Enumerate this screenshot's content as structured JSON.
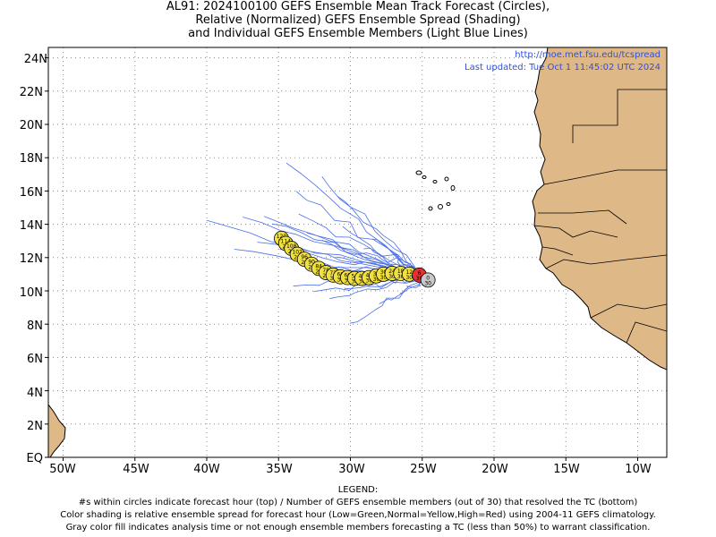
{
  "title_lines": [
    "AL91: 2024100100 GEFS Ensemble Mean Track Forecast (Circles),",
    "Relative (Normalized) GEFS Ensemble Spread (Shading)",
    "and Individual GEFS Ensemble Members (Light Blue Lines)"
  ],
  "info": {
    "url": "http://moe.met.fsu.edu/tcspread",
    "updated": "Last updated: Tue Oct 1 11:45:02 UTC 2024"
  },
  "legend": {
    "heading": "LEGEND:",
    "lines": [
      "#s within circles indicate forecast hour (top) / Number of GEFS ensemble members (out of 30) that resolved the TC (bottom)",
      "Color shading is relative ensemble spread for forecast hour (Low=Green,Normal=Yellow,High=Red) using 2004-11 GEFS climatology.",
      "Gray color fill indicates analysis time or not enough ensemble members forecasting a TC (less than 50%) to warrant classification."
    ]
  },
  "axes": {
    "lon_labels": [
      "50W",
      "45W",
      "40W",
      "35W",
      "30W",
      "25W",
      "20W",
      "15W",
      "10W"
    ],
    "lat_labels": [
      "EQ",
      "2N",
      "4N",
      "6N",
      "8N",
      "10N",
      "12N",
      "14N",
      "16N",
      "18N",
      "20N",
      "22N",
      "24N"
    ],
    "lon_range": [
      -51.5,
      -7.5
    ],
    "lat_range": [
      0,
      24.5
    ]
  },
  "colors": {
    "land": "#deb887",
    "member_track": "#4a6ee8",
    "mean_yellow": "#f0e040",
    "mean_red": "#e83030",
    "analysis_gray": "#c8c8c8",
    "info_text": "#3050e0"
  },
  "mean_track": [
    {
      "hour": "0",
      "members": "30",
      "lon": -24.6,
      "lat": 10.65,
      "spread": "analysis"
    },
    {
      "hour": "6",
      "members": "30",
      "lon": -25.2,
      "lat": 10.95,
      "spread": "high"
    },
    {
      "hour": "12",
      "members": "30",
      "lon": -25.9,
      "lat": 11.0,
      "spread": "normal"
    },
    {
      "hour": "18",
      "members": "30",
      "lon": -26.5,
      "lat": 11.05,
      "spread": "normal"
    },
    {
      "hour": "24",
      "members": "30",
      "lon": -27.1,
      "lat": 11.05,
      "spread": "normal"
    },
    {
      "hour": "30",
      "members": "30",
      "lon": -27.7,
      "lat": 11.0,
      "spread": "normal"
    },
    {
      "hour": "36",
      "members": "30",
      "lon": -28.2,
      "lat": 10.9,
      "spread": "normal"
    },
    {
      "hour": "42",
      "members": "30",
      "lon": -28.7,
      "lat": 10.8,
      "spread": "normal"
    },
    {
      "hour": "48",
      "members": "30",
      "lon": -29.2,
      "lat": 10.75,
      "spread": "normal"
    },
    {
      "hour": "54",
      "members": "30",
      "lon": -29.7,
      "lat": 10.75,
      "spread": "normal"
    },
    {
      "hour": "60",
      "members": "30",
      "lon": -30.2,
      "lat": 10.8,
      "spread": "normal"
    },
    {
      "hour": "66",
      "members": "30",
      "lon": -30.7,
      "lat": 10.85,
      "spread": "normal"
    },
    {
      "hour": "72",
      "members": "30",
      "lon": -31.2,
      "lat": 10.95,
      "spread": "normal"
    },
    {
      "hour": "78",
      "members": "29",
      "lon": -31.7,
      "lat": 11.1,
      "spread": "normal"
    },
    {
      "hour": "84",
      "members": "29",
      "lon": -32.2,
      "lat": 11.35,
      "spread": "normal"
    },
    {
      "hour": "90",
      "members": "29",
      "lon": -32.7,
      "lat": 11.6,
      "spread": "normal"
    },
    {
      "hour": "96",
      "members": "29",
      "lon": -33.2,
      "lat": 11.9,
      "spread": "normal"
    },
    {
      "hour": "102",
      "members": "29",
      "lon": -33.7,
      "lat": 12.2,
      "spread": "normal"
    },
    {
      "hour": "108",
      "members": "29",
      "lon": -34.1,
      "lat": 12.55,
      "spread": "normal"
    },
    {
      "hour": "114",
      "members": "29",
      "lon": -34.5,
      "lat": 12.85,
      "spread": "normal"
    },
    {
      "hour": "120",
      "members": "29",
      "lon": -34.8,
      "lat": 13.15,
      "spread": "normal"
    }
  ]
}
